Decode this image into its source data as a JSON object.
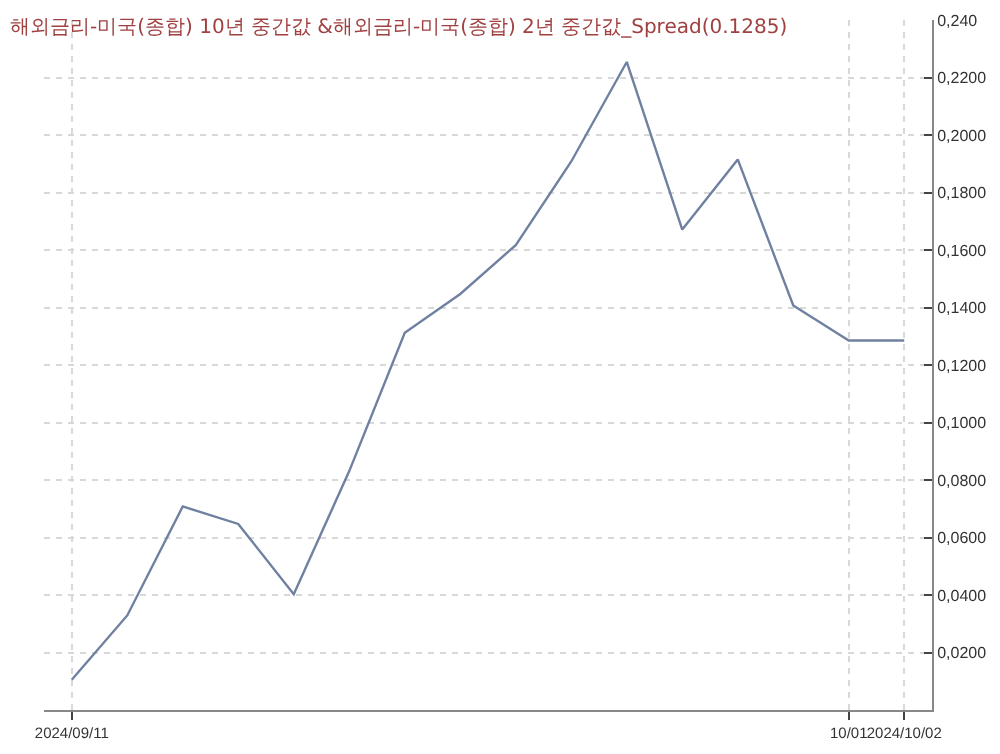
{
  "chart_data": {
    "type": "line",
    "title": "해외금리-미국(종합) 10년 중간값 &해외금리-미국(종합) 2년 중간값_Spread(0.1285)",
    "categories": [
      "2024/09/11",
      null,
      null,
      null,
      null,
      null,
      null,
      null,
      null,
      null,
      null,
      null,
      null,
      null,
      "10/01",
      "2024/10/02"
    ],
    "series": [
      {
        "color": "#7080a0",
        "values": [
          0.0105,
          0.0329,
          0.0708,
          0.0647,
          0.0403,
          0.0831,
          0.1312,
          0.1447,
          0.1617,
          0.1908,
          0.2254,
          0.1671,
          0.1915,
          0.1407,
          0.1285,
          0.1285
        ]
      }
    ],
    "ylim": [
      0,
      0.24
    ],
    "yticks": [
      {
        "value": 0.02,
        "label": "0,0200"
      },
      {
        "value": 0.04,
        "label": "0,0400"
      },
      {
        "value": 0.06,
        "label": "0,0600"
      },
      {
        "value": 0.08,
        "label": "0,0800"
      },
      {
        "value": 0.1,
        "label": "0,1000"
      },
      {
        "value": 0.12,
        "label": "0,1200"
      },
      {
        "value": 0.14,
        "label": "0,1400"
      },
      {
        "value": 0.16,
        "label": "0,1600"
      },
      {
        "value": 0.18,
        "label": "0,1800"
      },
      {
        "value": 0.2,
        "label": "0,2000"
      },
      {
        "value": 0.22,
        "label": "0,2200"
      },
      {
        "value": 0.24,
        "label": "0,240"
      }
    ],
    "grid": true,
    "marker": "none",
    "line_style": "solid"
  }
}
